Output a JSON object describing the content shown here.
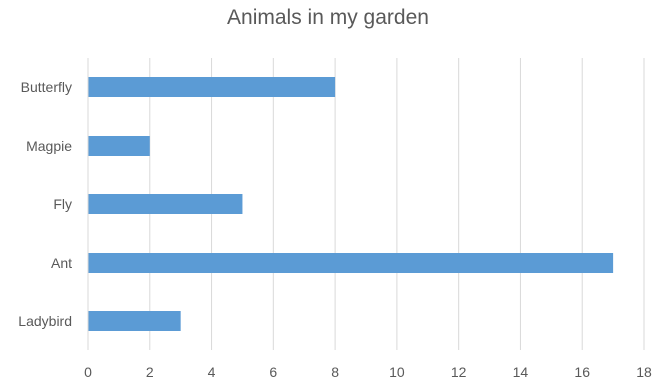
{
  "chart_data": {
    "type": "bar",
    "orientation": "horizontal",
    "title": "Animals in my garden",
    "xlabel": "",
    "ylabel": "",
    "categories": [
      "Butterfly",
      "Magpie",
      "Fly",
      "Ant",
      "Ladybird"
    ],
    "values": [
      8,
      2,
      5,
      17,
      3
    ],
    "xlim": [
      0,
      18
    ],
    "xticks": [
      "0",
      "2",
      "4",
      "6",
      "8",
      "10",
      "12",
      "14",
      "16",
      "18"
    ],
    "grid": "vertical",
    "legend": "none",
    "bar_color": "#5b9bd5",
    "grid_color": "#d9d9d9",
    "text_color": "#595959"
  }
}
